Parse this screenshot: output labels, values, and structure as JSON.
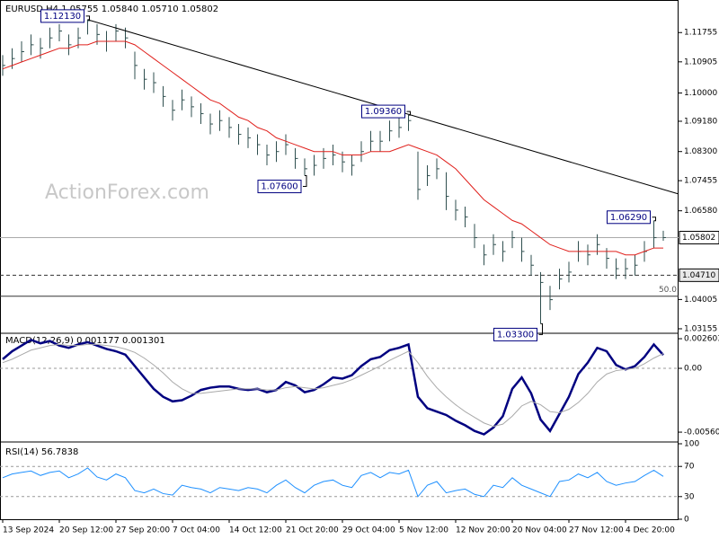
{
  "chart_data": [
    {
      "type": "ohlc",
      "title": "EURUSD,H4  1.05755 1.05840 1.05710 1.05802",
      "watermark": "ActionForex.com",
      "color": "#2f4f4f",
      "ylim": [
        1.0305,
        1.1257
      ],
      "yticks": [
        1.11755,
        1.10905,
        {
          "value": 1.1,
          "label": "1.10000"
        },
        {
          "value": 1.0918,
          "label": "1.09180"
        },
        {
          "value": 1.083,
          "label": "1.08300"
        },
        1.07455,
        {
          "value": 1.0658,
          "label": "1.06580"
        },
        1.04005,
        1.03155
      ],
      "xticks": [
        {
          "value": 0,
          "label": "13 Sep 2024"
        },
        {
          "value": 6,
          "label": "20 Sep 12:00"
        },
        {
          "value": 12,
          "label": "27 Sep 20:00"
        },
        {
          "value": 18,
          "label": "7 Oct 04:00"
        },
        {
          "value": 24,
          "label": "14 Oct 12:00"
        },
        {
          "value": 30,
          "label": "21 Oct 20:00"
        },
        {
          "value": 36,
          "label": "29 Oct 04:00"
        },
        {
          "value": 42,
          "label": "5 Nov 12:00"
        },
        {
          "value": 48,
          "label": "12 Nov 20:00"
        },
        {
          "value": 54,
          "label": "20 Nov 04:00"
        },
        {
          "value": 60,
          "label": "27 Nov 12:00"
        },
        {
          "value": 66,
          "label": "4 Dec 20:00"
        }
      ],
      "high": [
        1.111,
        1.113,
        1.115,
        1.117,
        1.116,
        1.119,
        1.12,
        1.117,
        1.119,
        1.1213,
        1.12,
        1.118,
        1.12,
        1.119,
        1.112,
        1.107,
        1.106,
        1.102,
        1.098,
        1.101,
        1.099,
        1.097,
        1.094,
        1.095,
        1.093,
        1.091,
        1.09,
        1.088,
        1.085,
        1.086,
        1.088,
        1.084,
        1.081,
        1.082,
        1.084,
        1.085,
        1.083,
        1.082,
        1.086,
        1.089,
        1.089,
        1.092,
        1.093,
        1.0936,
        1.083,
        1.079,
        1.081,
        1.077,
        1.069,
        1.067,
        1.062,
        1.056,
        1.059,
        1.057,
        1.06,
        1.058,
        1.053,
        1.048,
        1.044,
        1.049,
        1.051,
        1.057,
        1.056,
        1.059,
        1.055,
        1.052,
        1.052,
        1.053,
        1.057,
        1.0629,
        1.06
      ],
      "low": [
        1.105,
        1.107,
        1.109,
        1.111,
        1.11,
        1.113,
        1.115,
        1.111,
        1.113,
        1.117,
        1.114,
        1.112,
        1.115,
        1.113,
        1.104,
        1.101,
        1.1,
        1.096,
        1.092,
        1.095,
        1.093,
        1.091,
        1.088,
        1.089,
        1.087,
        1.085,
        1.084,
        1.082,
        1.079,
        1.08,
        1.082,
        1.078,
        1.076,
        1.076,
        1.078,
        1.079,
        1.077,
        1.076,
        1.08,
        1.083,
        1.083,
        1.086,
        1.087,
        1.089,
        1.069,
        1.073,
        1.075,
        1.066,
        1.063,
        1.061,
        1.055,
        1.05,
        1.053,
        1.051,
        1.055,
        1.051,
        1.047,
        1.033,
        1.037,
        1.043,
        1.045,
        1.051,
        1.05,
        1.053,
        1.049,
        1.046,
        1.046,
        1.047,
        1.051,
        1.055,
        1.0571
      ],
      "close": [
        1.108,
        1.11,
        1.112,
        1.114,
        1.113,
        1.116,
        1.118,
        1.114,
        1.116,
        1.121,
        1.117,
        1.115,
        1.118,
        1.116,
        1.108,
        1.104,
        1.103,
        1.099,
        1.095,
        1.098,
        1.096,
        1.094,
        1.091,
        1.092,
        1.09,
        1.088,
        1.087,
        1.085,
        1.082,
        1.083,
        1.085,
        1.081,
        1.078,
        1.079,
        1.081,
        1.082,
        1.08,
        1.079,
        1.083,
        1.086,
        1.086,
        1.089,
        1.09,
        1.092,
        1.072,
        1.076,
        1.078,
        1.07,
        1.066,
        1.064,
        1.058,
        1.053,
        1.056,
        1.054,
        1.058,
        1.054,
        1.05,
        1.045,
        1.04,
        1.046,
        1.048,
        1.054,
        1.053,
        1.056,
        1.052,
        1.049,
        1.049,
        1.05,
        1.054,
        1.058,
        1.05802
      ],
      "series": [
        {
          "color": "#e0201c",
          "values": [
            1.107,
            1.108,
            1.109,
            1.11,
            1.111,
            1.112,
            1.113,
            1.113,
            1.114,
            1.114,
            1.115,
            1.115,
            1.115,
            1.115,
            1.114,
            1.112,
            1.11,
            1.108,
            1.106,
            1.104,
            1.102,
            1.1,
            1.098,
            1.097,
            1.095,
            1.093,
            1.092,
            1.09,
            1.089,
            1.087,
            1.086,
            1.085,
            1.084,
            1.083,
            1.083,
            1.083,
            1.082,
            1.082,
            1.082,
            1.083,
            1.083,
            1.083,
            1.084,
            1.085,
            1.084,
            1.083,
            1.082,
            1.08,
            1.078,
            1.075,
            1.072,
            1.069,
            1.067,
            1.065,
            1.063,
            1.062,
            1.06,
            1.058,
            1.056,
            1.055,
            1.054,
            1.054,
            1.054,
            1.054,
            1.054,
            1.054,
            1.053,
            1.053,
            1.054,
            1.055,
            1.055
          ]
        }
      ],
      "trendline": {
        "x": [
          9,
          71.6
        ],
        "y": [
          1.1213,
          1.0707
        ],
        "color": "#000000"
      },
      "annotations": [
        {
          "text": "1.12130",
          "at": 9,
          "side": "high"
        },
        {
          "text": "1.09360",
          "at": 43,
          "side": "high"
        },
        {
          "text": "1.07600",
          "at": 32,
          "side": "low"
        },
        {
          "text": "1.03300",
          "at": 57,
          "side": "low"
        },
        {
          "text": "1.06290",
          "at": 69,
          "side": "high"
        }
      ],
      "levels": [
        {
          "value": 1.05802,
          "label": "1.05802",
          "style": "current"
        },
        {
          "value": 1.0471,
          "label": "1.04710",
          "style": "dashed"
        },
        {
          "value": 1.041,
          "fib_label": "50.0",
          "style": "solid"
        }
      ]
    },
    {
      "type": "line",
      "title": "MACD(12,26,9) 0.001177 0.001301",
      "ylim": [
        -0.00631,
        0.003
      ],
      "yticks": [
        0.002603,
        {
          "value": 0,
          "label": "0.00"
        },
        -0.005604
      ],
      "levels": [
        0
      ],
      "series": [
        {
          "color": "#000080",
          "width": 2.5,
          "values": [
            0.0008,
            0.0015,
            0.002,
            0.0025,
            0.0022,
            0.0024,
            0.002,
            0.0018,
            0.0021,
            0.0023,
            0.002,
            0.0017,
            0.0015,
            0.0012,
            0.0002,
            -0.0008,
            -0.0018,
            -0.0025,
            -0.0029,
            -0.0028,
            -0.0024,
            -0.0019,
            -0.0017,
            -0.0016,
            -0.0016,
            -0.0018,
            -0.0019,
            -0.0018,
            -0.0021,
            -0.0019,
            -0.0012,
            -0.0015,
            -0.0021,
            -0.0019,
            -0.0014,
            -0.0008,
            -0.0009,
            -0.0006,
            0.0002,
            0.0008,
            0.001,
            0.0016,
            0.0018,
            0.0021,
            -0.0025,
            -0.0035,
            -0.0038,
            -0.0041,
            -0.0046,
            -0.005,
            -0.0055,
            -0.0058,
            -0.0052,
            -0.0042,
            -0.0018,
            -0.0008,
            -0.0022,
            -0.0045,
            -0.0055,
            -0.004,
            -0.0025,
            -0.0005,
            0.0005,
            0.0018,
            0.0015,
            0.0003,
            -0.0001,
            0.0002,
            0.001,
            0.0021,
            0.001177
          ]
        },
        {
          "color": "#a9a9a9",
          "width": 1,
          "values": [
            0.0005,
            0.0008,
            0.0012,
            0.0016,
            0.0018,
            0.002,
            0.0021,
            0.002,
            0.002,
            0.0021,
            0.0021,
            0.002,
            0.0019,
            0.0017,
            0.0014,
            0.0009,
            0.0003,
            -0.0004,
            -0.0012,
            -0.0018,
            -0.0022,
            -0.0022,
            -0.0021,
            -0.002,
            -0.0019,
            -0.0018,
            -0.0018,
            -0.0018,
            -0.0019,
            -0.0019,
            -0.0017,
            -0.0016,
            -0.0017,
            -0.0018,
            -0.0017,
            -0.0015,
            -0.0013,
            -0.001,
            -0.0006,
            -0.0002,
            0.0002,
            0.0007,
            0.0011,
            0.0015,
            0.0005,
            -0.0007,
            -0.0017,
            -0.0025,
            -0.0032,
            -0.0038,
            -0.0043,
            -0.0048,
            -0.0051,
            -0.0049,
            -0.0042,
            -0.0033,
            -0.0029,
            -0.0032,
            -0.0038,
            -0.0039,
            -0.0036,
            -0.003,
            -0.0022,
            -0.0012,
            -0.0005,
            -0.0002,
            -0.0001,
            0,
            0.0004,
            0.0009,
            0.001301
          ]
        }
      ]
    },
    {
      "type": "line",
      "title": "RSI(14) 56.7838",
      "ylim": [
        0,
        100
      ],
      "yticks": [
        100,
        70,
        30,
        0
      ],
      "levels": [
        70,
        30
      ],
      "series": [
        {
          "color": "#1e90ff",
          "width": 1,
          "values": [
            55,
            60,
            62,
            64,
            58,
            62,
            64,
            55,
            60,
            68,
            56,
            52,
            60,
            55,
            38,
            35,
            40,
            34,
            32,
            45,
            42,
            40,
            35,
            42,
            40,
            38,
            42,
            40,
            35,
            45,
            52,
            42,
            35,
            45,
            50,
            52,
            45,
            42,
            58,
            62,
            55,
            62,
            60,
            65,
            30,
            45,
            50,
            35,
            38,
            40,
            33,
            30,
            45,
            42,
            55,
            45,
            40,
            35,
            30,
            50,
            52,
            60,
            55,
            62,
            50,
            45,
            48,
            50,
            58,
            65,
            56.7838
          ]
        }
      ]
    }
  ]
}
